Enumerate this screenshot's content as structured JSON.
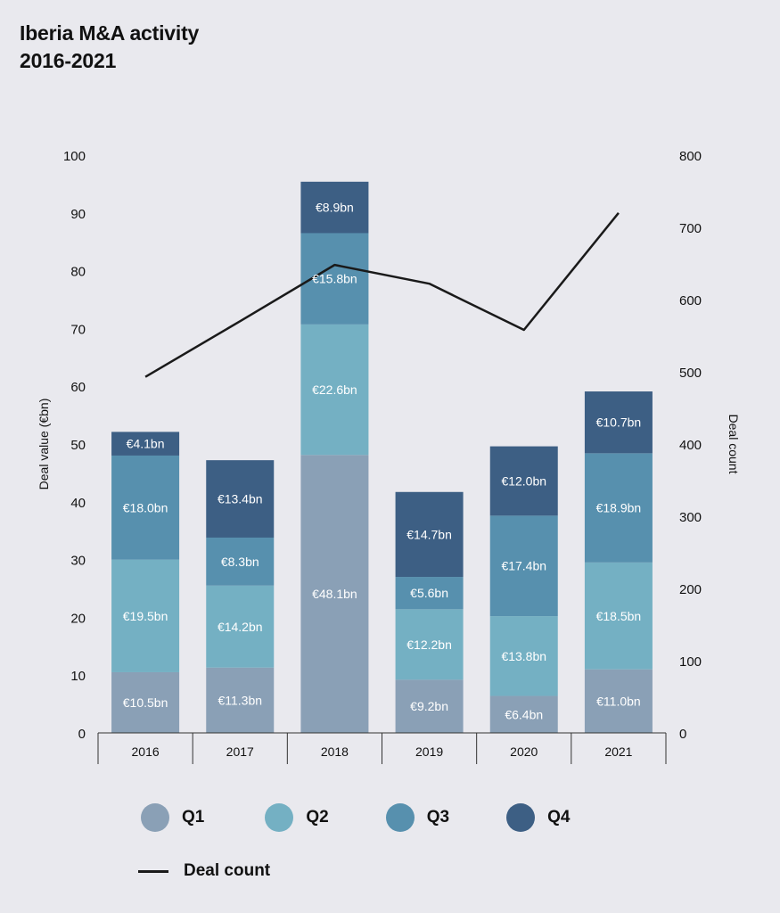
{
  "title_line1": "Iberia M&A activity",
  "title_line2": "2016-2021",
  "chart_data": {
    "type": "bar",
    "stacked": true,
    "categories": [
      "2016",
      "2017",
      "2018",
      "2019",
      "2020",
      "2021"
    ],
    "series": [
      {
        "name": "Q1",
        "color": "#8aa0b6",
        "values": [
          10.5,
          11.3,
          48.1,
          9.2,
          6.4,
          11.0
        ],
        "labels": [
          "€10.5bn",
          "€11.3bn",
          "€48.1bn",
          "€9.2bn",
          "€6.4bn",
          "€11.0bn"
        ]
      },
      {
        "name": "Q2",
        "color": "#74b0c3",
        "values": [
          19.5,
          14.2,
          22.6,
          12.2,
          13.8,
          18.5
        ],
        "labels": [
          "€19.5bn",
          "€14.2bn",
          "€22.6bn",
          "€12.2bn",
          "€13.8bn",
          "€18.5bn"
        ]
      },
      {
        "name": "Q3",
        "color": "#5790ae",
        "values": [
          18.0,
          8.3,
          15.8,
          5.6,
          17.4,
          18.9
        ],
        "labels": [
          "€18.0bn",
          "€8.3bn",
          "€15.8bn",
          "€5.6bn",
          "€17.4bn",
          "€18.9bn"
        ]
      },
      {
        "name": "Q4",
        "color": "#3d5f84",
        "values": [
          4.1,
          13.4,
          8.9,
          14.7,
          12.0,
          10.7
        ],
        "labels": [
          "€4.1bn",
          "€13.4bn",
          "€8.9bn",
          "€14.7bn",
          "€12.0bn",
          "€10.7bn"
        ]
      }
    ],
    "line_series": {
      "name": "Deal count",
      "color": "#1a1a1a",
      "values": [
        493,
        570,
        648,
        622,
        558,
        720
      ]
    },
    "ylabel": "Deal value (€bn)",
    "ylim": [
      0,
      100
    ],
    "yticks": [
      "0",
      "10",
      "20",
      "30",
      "40",
      "50",
      "60",
      "70",
      "80",
      "90",
      "100"
    ],
    "y2label": "Deal count",
    "y2lim": [
      0,
      800
    ],
    "y2ticks": [
      "0",
      "100",
      "200",
      "300",
      "400",
      "500",
      "600",
      "700",
      "800"
    ],
    "grid": false,
    "legend": "bottom"
  },
  "legend": {
    "q1": "Q1",
    "q1_color": "#8aa0b6",
    "q2": "Q2",
    "q2_color": "#74b0c3",
    "q3": "Q3",
    "q3_color": "#5790ae",
    "q4": "Q4",
    "q4_color": "#3d5f84",
    "deal_count": "Deal count"
  }
}
